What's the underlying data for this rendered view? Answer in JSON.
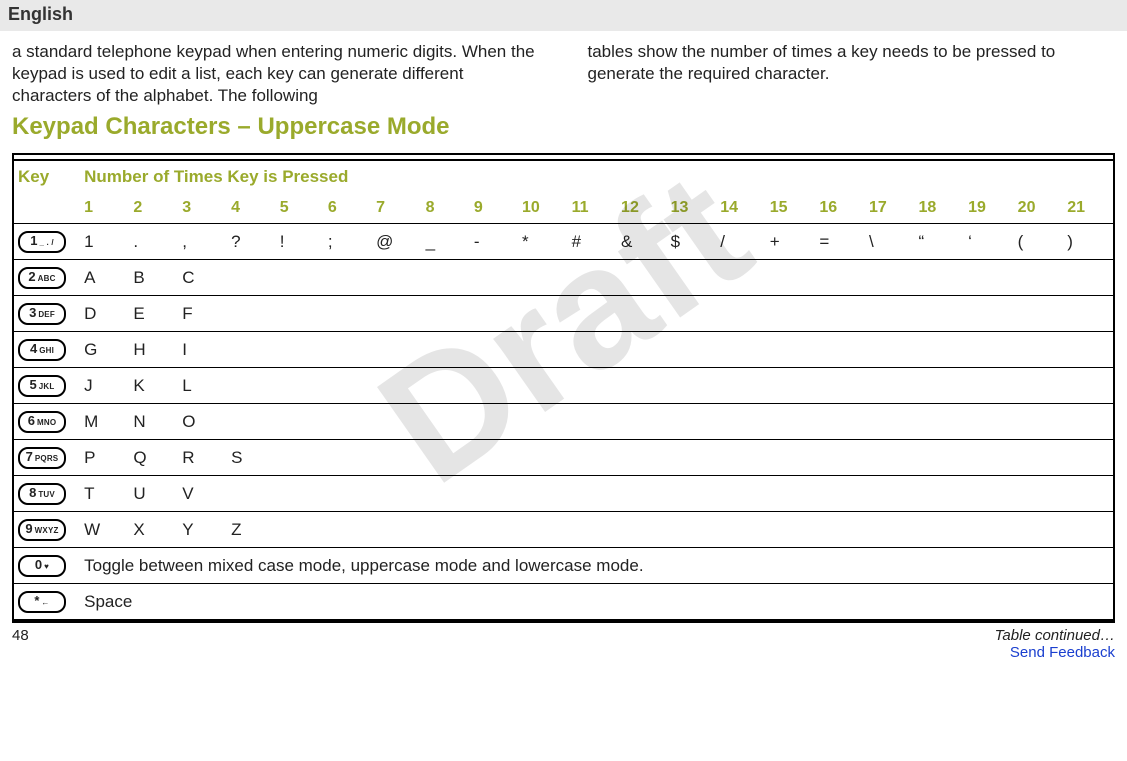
{
  "header": {
    "language": "English"
  },
  "intro": {
    "left": "a standard telephone keypad when entering numeric digits. When the keypad is used to edit a list, each key can generate different characters of the alphabet. The following",
    "right": "tables show the number of times a key needs to be pressed to generate the required character."
  },
  "section_title": "Keypad Characters – Uppercase Mode",
  "watermark": "Draft",
  "table": {
    "header": {
      "key_label": "Key",
      "presses_label": "Number of Times Key is Pressed",
      "columns": [
        "1",
        "2",
        "3",
        "4",
        "5",
        "6",
        "7",
        "8",
        "9",
        "10",
        "11",
        "12",
        "13",
        "14",
        "15",
        "16",
        "17",
        "18",
        "19",
        "20",
        "21"
      ]
    },
    "rows": [
      {
        "key_big": "1",
        "key_sub": "_ . /",
        "cells": [
          "1",
          ".",
          ",",
          "?",
          "!",
          ";",
          "@",
          "_",
          "-",
          "*",
          "#",
          "&",
          "$",
          "/",
          "+",
          "=",
          "\\",
          "“",
          "‘",
          "(",
          ")"
        ]
      },
      {
        "key_big": "2",
        "key_sub": "ABC",
        "cells": [
          "A",
          "B",
          "C"
        ]
      },
      {
        "key_big": "3",
        "key_sub": "DEF",
        "cells": [
          "D",
          "E",
          "F"
        ]
      },
      {
        "key_big": "4",
        "key_sub": "GHI",
        "cells": [
          "G",
          "H",
          "I"
        ]
      },
      {
        "key_big": "5",
        "key_sub": "JKL",
        "cells": [
          "J",
          "K",
          "L"
        ]
      },
      {
        "key_big": "6",
        "key_sub": "MNO",
        "cells": [
          "M",
          "N",
          "O"
        ]
      },
      {
        "key_big": "7",
        "key_sub": "PQRS",
        "cells": [
          "P",
          "Q",
          "R",
          "S"
        ]
      },
      {
        "key_big": "8",
        "key_sub": "TUV",
        "cells": [
          "T",
          "U",
          "V"
        ]
      },
      {
        "key_big": "9",
        "key_sub": "WXYZ",
        "cells": [
          "W",
          "X",
          "Y",
          "Z"
        ]
      },
      {
        "key_big": "0",
        "key_sub": "♥",
        "span_text": "Toggle between mixed case mode, uppercase mode and lowercase mode."
      },
      {
        "key_big": "*",
        "key_sub": "←",
        "span_text": "Space"
      }
    ]
  },
  "footer": {
    "page_number": "48",
    "continued": "Table continued…",
    "link_text": "Send Feedback"
  },
  "colors": {
    "accent": "#9aaa2c",
    "link": "#1a3fcf",
    "header_bg": "#e9e9e9",
    "watermark": "rgba(0,0,0,0.10)"
  }
}
